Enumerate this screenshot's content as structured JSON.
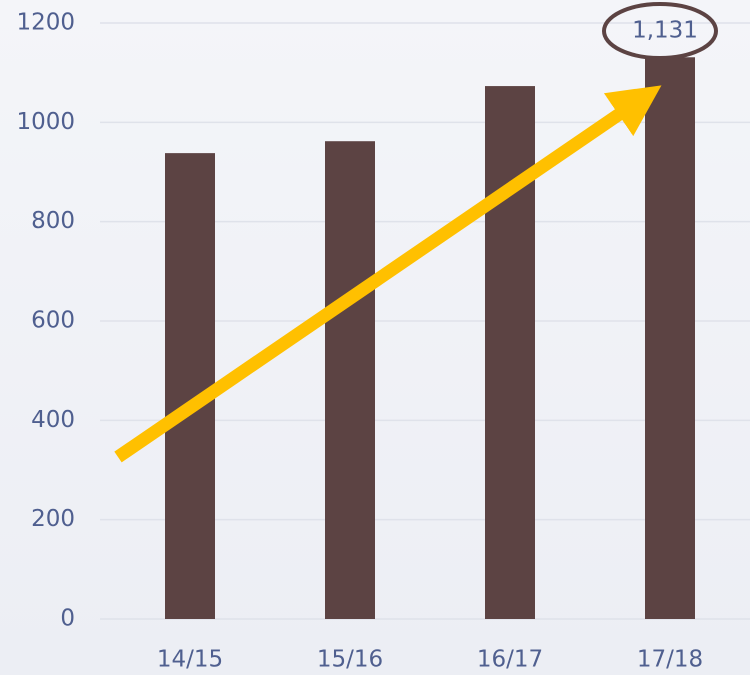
{
  "chart_data": {
    "type": "bar",
    "categories": [
      "14/15",
      "15/16",
      "16/17",
      "17/18"
    ],
    "values": [
      938,
      962,
      1073,
      1131
    ],
    "value_labels": [
      null,
      null,
      null,
      "1,131"
    ],
    "color": "#5c4343",
    "ylim": [
      0,
      1200
    ],
    "yticks": [
      0,
      200,
      400,
      600,
      800,
      1000,
      1200
    ],
    "grid": true
  }
}
